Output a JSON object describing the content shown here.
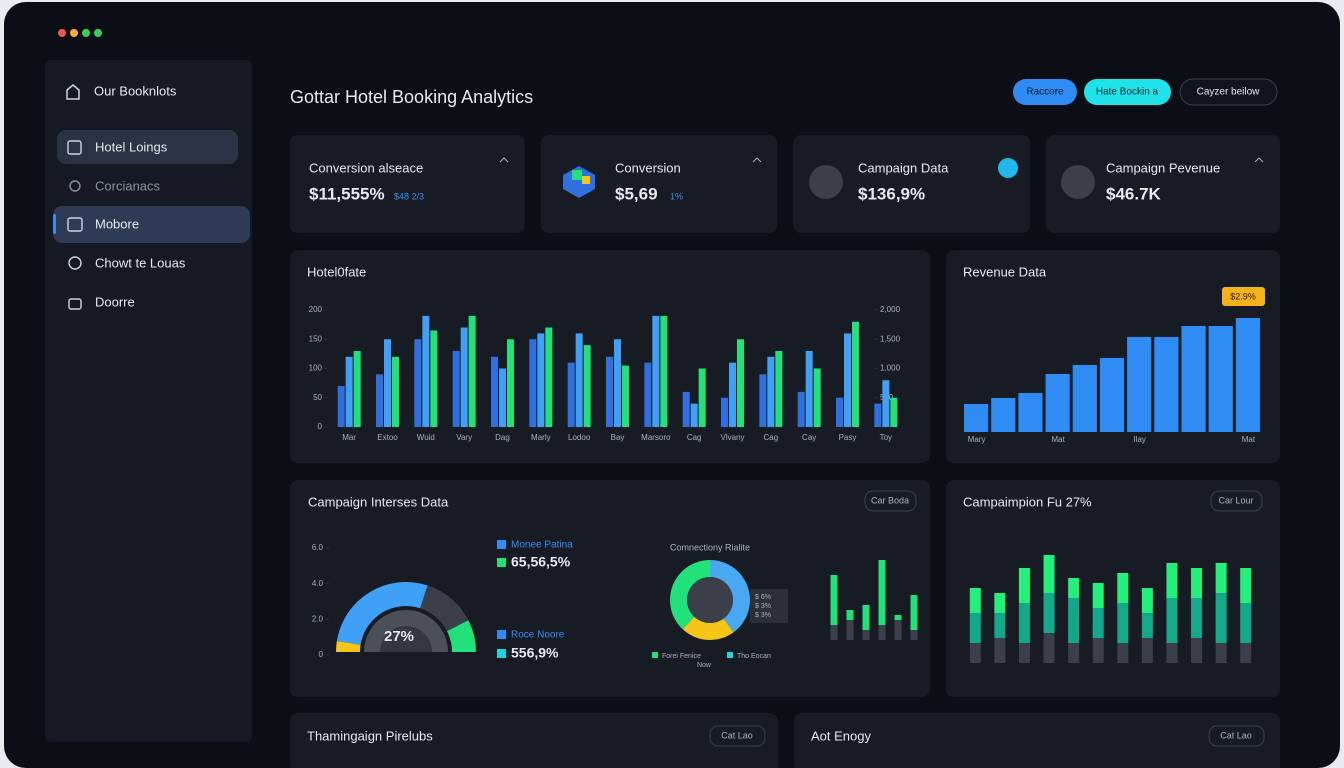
{
  "sidebar": {
    "brand": "Our Booknlots",
    "items": [
      "Hotel Loings",
      "Corcianacs",
      "Mobore",
      "Chowt te Louas",
      "Doorre"
    ]
  },
  "header": {
    "title": "Gottar Hotel Booking Analytics",
    "buttons": [
      "Raccore",
      "Hate Bockin a",
      "Cayzer beilow"
    ]
  },
  "kpis": [
    {
      "label": "Conversion alseace",
      "value": "$11,555%",
      "note": "$48 2/3"
    },
    {
      "label": "Conversion",
      "value": "$5,69",
      "note": "1%"
    },
    {
      "label": "Campaign Data",
      "value": "$136,9%"
    },
    {
      "label": "Campaign Pevenue",
      "value": "$46.7K"
    }
  ],
  "hotel_chart": {
    "type": "bar",
    "title": "Hotel0fate",
    "categories": [
      "Mar",
      "Extoo",
      "Wuid",
      "Vary",
      "Dag",
      "Marly",
      "Lodoo",
      "Bay",
      "Marsoro",
      "Cag",
      "Vlvany",
      "Cag",
      "Cay",
      "Pasy",
      "Toy"
    ],
    "series": [
      {
        "color": "#2f6fe0",
        "values": [
          70,
          90,
          150,
          130,
          120,
          150,
          110,
          120,
          110,
          60,
          50,
          90,
          60,
          50,
          40
        ]
      },
      {
        "color": "#3fa0f5",
        "values": [
          120,
          150,
          190,
          170,
          100,
          160,
          160,
          150,
          190,
          40,
          110,
          120,
          130,
          160,
          80
        ]
      },
      {
        "color": "#22e07a",
        "values": [
          130,
          120,
          165,
          190,
          150,
          170,
          140,
          105,
          190,
          100,
          150,
          130,
          100,
          180,
          50
        ]
      }
    ],
    "ylim": [
      0,
      200
    ],
    "yticks": [
      0,
      50,
      100,
      150,
      200
    ],
    "y2lim": [
      0,
      2000
    ],
    "y2ticks": [
      500,
      {
        "value": 1000,
        "label": "1,000"
      },
      {
        "value": 1500,
        "label": "1,500"
      },
      {
        "value": 2000,
        "label": "2,000"
      }
    ]
  },
  "revenue_chart": {
    "type": "bar",
    "title": "Revenue Data",
    "badge": "$2.9%",
    "categories": [
      "Mary",
      null,
      null,
      "Mat",
      null,
      null,
      "Ilay",
      null,
      null,
      null,
      "Mat"
    ],
    "values": [
      28,
      34,
      39,
      58,
      67,
      74,
      95,
      95,
      106,
      106,
      114
    ],
    "color": "#2f8cf5",
    "ylim": [
      0,
      120
    ]
  },
  "campaign_panel": {
    "title": "Campaign Interses Data",
    "button": "Car Boda",
    "gauge": {
      "type": "gauge",
      "center_label": "27%",
      "ylim": [
        0,
        6
      ],
      "yticks": [
        0,
        {
          "value": 2,
          "label": "2.0"
        },
        {
          "value": 4,
          "label": "4.0"
        },
        {
          "value": 6,
          "label": "6.0"
        }
      ],
      "segments": [
        {
          "color": "#f5c518",
          "value": 5
        },
        {
          "color": "#3fa0f5",
          "value": 55
        },
        {
          "color": "#3a3f4a",
          "value": 25
        },
        {
          "color": "#22e07a",
          "value": 15
        }
      ]
    },
    "legend": [
      {
        "name": "Monee Patina",
        "value": "65,56,5%",
        "color": "#2f8cf5"
      },
      {
        "name": "Roce Noore",
        "value": "556,9%",
        "color": "#1fd3e0"
      }
    ],
    "donut": {
      "type": "pie",
      "title": "Comnectiony Rialite",
      "values": [
        40,
        22,
        38
      ],
      "colors": [
        "#4aa8f0",
        "#f5c518",
        "#22e07a"
      ],
      "callout": [
        "$ 6%",
        "$ 3%",
        "$ 3%"
      ],
      "legend": [
        "Forei Fenice",
        "Tho Eocan"
      ],
      "note": "Now"
    },
    "mini_bars": {
      "type": "bar",
      "stacked": true,
      "ylim": [
        0,
        90
      ],
      "series": [
        {
          "color": "#3a3f4a",
          "values": [
            15,
            20,
            10,
            15,
            20,
            10
          ]
        },
        {
          "color": "#22e07a",
          "values": [
            50,
            10,
            25,
            65,
            5,
            35
          ]
        }
      ]
    }
  },
  "fu_chart": {
    "type": "bar",
    "stacked": true,
    "title": "Campaimpion Fu 27%",
    "button": "Car Lour",
    "ylim": [
      0,
      110
    ],
    "series": [
      {
        "color": "#3a3f4a",
        "values": [
          20,
          25,
          20,
          30,
          20,
          25,
          20,
          25,
          20,
          25,
          20,
          20
        ]
      },
      {
        "color": "#14a88a",
        "values": [
          30,
          25,
          40,
          40,
          45,
          30,
          40,
          25,
          45,
          40,
          50,
          40
        ]
      },
      {
        "color": "#22f07a",
        "values": [
          25,
          20,
          35,
          38,
          20,
          25,
          30,
          25,
          35,
          30,
          30,
          35
        ]
      }
    ]
  },
  "bottom": [
    {
      "title": "Thamingaign Pirelubs",
      "button": "Cat Lao"
    },
    {
      "title": "Aot Enogy",
      "button": "Cat Lao"
    }
  ]
}
